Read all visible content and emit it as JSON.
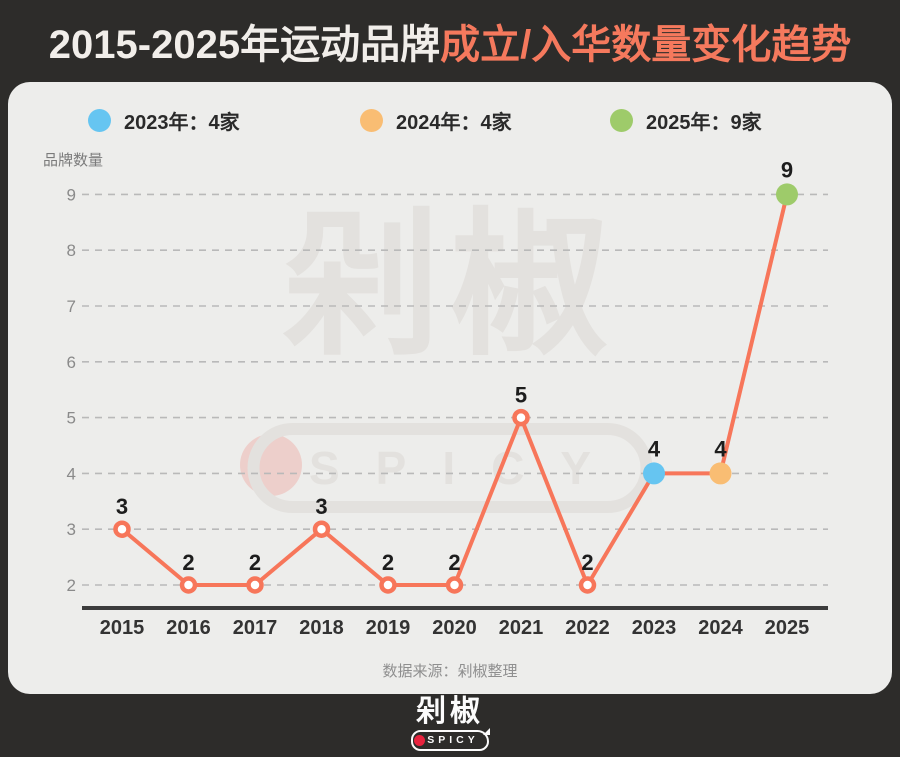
{
  "title": {
    "part_plain": "2015-2025年运动品牌",
    "part_accent": "成立/入华数量变化趋势"
  },
  "legend": [
    {
      "label": "2023年：4家",
      "color": "#66c5f1"
    },
    {
      "label": "2024年：4家",
      "color": "#f9bd73"
    },
    {
      "label": "2025年：9家",
      "color": "#9ecb6a"
    }
  ],
  "y_axis_label": "品牌数量",
  "source_note": "数据来源：剁椒整理",
  "watermark": {
    "text": "剁椒",
    "subtext": "SPICY"
  },
  "footer_logo": {
    "text": "剁椒",
    "subtext": "SPICY"
  },
  "colors": {
    "accent": "#f5795d",
    "line": "#f7765a",
    "background_dark": "#2d2c2a",
    "card_background": "#ededeb",
    "highlight_2023": "#66c5f1",
    "highlight_2024": "#f9bd73",
    "highlight_2025": "#9ecb6a"
  },
  "chart_data": {
    "type": "line",
    "title": "2015-2025年运动品牌成立/入华数量变化趋势",
    "categories": [
      "2015",
      "2016",
      "2017",
      "2018",
      "2019",
      "2020",
      "2021",
      "2022",
      "2023",
      "2024",
      "2025"
    ],
    "values": [
      3,
      2,
      2,
      3,
      2,
      2,
      5,
      2,
      4,
      4,
      9
    ],
    "xlabel": "",
    "ylabel": "品牌数量",
    "yticks": [
      2,
      3,
      4,
      5,
      6,
      7,
      8,
      9
    ],
    "ylim": [
      2,
      9
    ],
    "grid": "horizontal-dashed",
    "legend_position": "top",
    "line_color": "#f7765a",
    "point_style": "open-circle",
    "highlight_points": {
      "2023": "#66c5f1",
      "2024": "#f9bd73",
      "2025": "#9ecb6a"
    }
  }
}
